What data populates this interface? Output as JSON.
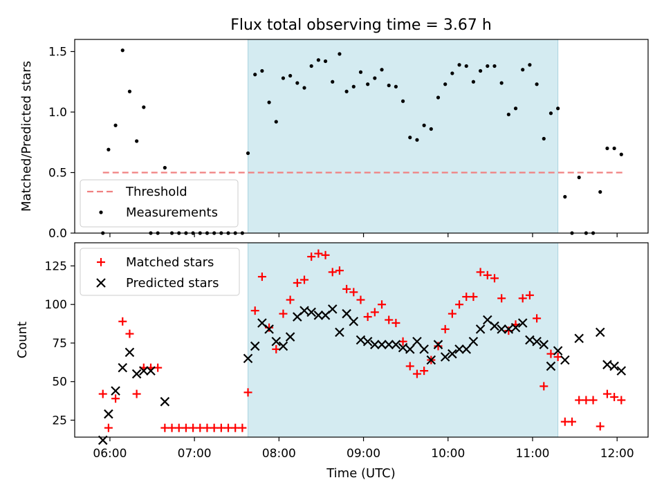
{
  "chart_data": [
    {
      "type": "scatter",
      "title": "Flux total observing time = 3.67 h",
      "ylabel": "Matched/Predicted stars",
      "xlabel": "",
      "xlim": [
        "05:35",
        "12:22"
      ],
      "ylim": [
        0,
        1.6
      ],
      "yticks": [
        0.0,
        0.5,
        1.0,
        1.5
      ],
      "ytick_labels": [
        "0.0",
        "0.5",
        "1.0",
        "1.5"
      ],
      "grid": false,
      "legend_position": "lower-left",
      "shaded_interval": [
        "07:38",
        "11:18"
      ],
      "shade_color": "#d4ebf1",
      "threshold": {
        "name": "Threshold",
        "y": 0.5,
        "x_range": [
          "05:55",
          "12:05"
        ],
        "color": "#f08080"
      },
      "series": [
        {
          "name": "Measurements",
          "color": "#000000",
          "marker": "dot",
          "x": [
            "05:55",
            "05:59",
            "06:04",
            "06:09",
            "06:14",
            "06:19",
            "06:24",
            "06:29",
            "06:34",
            "06:39",
            "06:44",
            "06:49",
            "06:54",
            "06:59",
            "07:04",
            "07:09",
            "07:14",
            "07:19",
            "07:24",
            "07:29",
            "07:34",
            "07:38",
            "07:43",
            "07:48",
            "07:53",
            "07:58",
            "08:03",
            "08:08",
            "08:13",
            "08:18",
            "08:23",
            "08:28",
            "08:33",
            "08:38",
            "08:43",
            "08:48",
            "08:53",
            "08:58",
            "09:03",
            "09:08",
            "09:13",
            "09:18",
            "09:23",
            "09:28",
            "09:33",
            "09:38",
            "09:43",
            "09:48",
            "09:53",
            "09:58",
            "10:03",
            "10:08",
            "10:13",
            "10:18",
            "10:23",
            "10:28",
            "10:33",
            "10:38",
            "10:43",
            "10:48",
            "10:53",
            "10:58",
            "11:03",
            "11:08",
            "11:13",
            "11:18",
            "11:23",
            "11:28",
            "11:33",
            "11:38",
            "11:43",
            "11:48",
            "11:53",
            "11:58",
            "12:03"
          ],
          "y": [
            0,
            0.69,
            0.89,
            1.51,
            1.17,
            0.76,
            1.04,
            0,
            0,
            0.54,
            0,
            0,
            0,
            0,
            0,
            0,
            0,
            0,
            0,
            0,
            0,
            0.66,
            1.31,
            1.34,
            1.08,
            0.92,
            1.28,
            1.3,
            1.24,
            1.2,
            1.38,
            1.43,
            1.42,
            1.25,
            1.48,
            1.17,
            1.21,
            1.33,
            1.23,
            1.28,
            1.35,
            1.22,
            1.21,
            1.09,
            0.79,
            0.77,
            0.89,
            0.86,
            1.12,
            1.23,
            1.32,
            1.39,
            1.38,
            1.25,
            1.34,
            1.38,
            1.38,
            1.24,
            0.98,
            1.03,
            1.35,
            1.39,
            1.23,
            0.78,
            0.99,
            1.03,
            0.3,
            0,
            0.46,
            0,
            0,
            0.34,
            0.7,
            0.7,
            0.65
          ]
        }
      ]
    },
    {
      "type": "scatter",
      "title": "",
      "xlabel": "Time (UTC)",
      "ylabel": "Count",
      "xlim": [
        "05:35",
        "12:22"
      ],
      "ylim": [
        14,
        140
      ],
      "xticks": [
        "06:00",
        "07:00",
        "08:00",
        "09:00",
        "10:00",
        "11:00",
        "12:00"
      ],
      "yticks": [
        25,
        50,
        75,
        100,
        125
      ],
      "ytick_labels": [
        "25",
        "50",
        "75",
        "100",
        "125"
      ],
      "grid": false,
      "legend_position": "top-left",
      "shaded_interval": [
        "07:38",
        "11:18"
      ],
      "shade_color": "#d4ebf1",
      "series": [
        {
          "name": "Matched stars",
          "color": "#ff0000",
          "marker": "plus",
          "x": [
            "05:55",
            "05:59",
            "06:04",
            "06:09",
            "06:14",
            "06:19",
            "06:24",
            "06:29",
            "06:34",
            "06:39",
            "06:44",
            "06:49",
            "06:54",
            "06:59",
            "07:04",
            "07:09",
            "07:14",
            "07:19",
            "07:24",
            "07:29",
            "07:34",
            "07:38",
            "07:43",
            "07:48",
            "07:53",
            "07:58",
            "08:03",
            "08:08",
            "08:13",
            "08:18",
            "08:23",
            "08:28",
            "08:33",
            "08:38",
            "08:43",
            "08:48",
            "08:53",
            "08:58",
            "09:03",
            "09:08",
            "09:13",
            "09:18",
            "09:23",
            "09:28",
            "09:33",
            "09:38",
            "09:43",
            "09:48",
            "09:53",
            "09:58",
            "10:03",
            "10:08",
            "10:13",
            "10:18",
            "10:23",
            "10:28",
            "10:33",
            "10:38",
            "10:43",
            "10:48",
            "10:53",
            "10:58",
            "11:03",
            "11:08",
            "11:13",
            "11:18",
            "11:23",
            "11:28",
            "11:33",
            "11:38",
            "11:43",
            "11:48",
            "11:53",
            "11:58",
            "12:03"
          ],
          "y": [
            42,
            20,
            39,
            89,
            81,
            42,
            59,
            59,
            59,
            20,
            20,
            20,
            20,
            20,
            20,
            20,
            20,
            20,
            20,
            20,
            20,
            43,
            96,
            118,
            85,
            71,
            94,
            103,
            114,
            116,
            131,
            133,
            132,
            121,
            122,
            110,
            108,
            103,
            92,
            95,
            100,
            90,
            88,
            76,
            60,
            55,
            57,
            64,
            73,
            84,
            94,
            100,
            105,
            105,
            121,
            119,
            117,
            104,
            83,
            87,
            104,
            106,
            91,
            47,
            68,
            66,
            24,
            24,
            38,
            38,
            38,
            21,
            42,
            40,
            38
          ]
        },
        {
          "name": "Predicted stars",
          "color": "#000000",
          "marker": "x",
          "x": [
            "05:55",
            "05:59",
            "06:04",
            "06:09",
            "06:14",
            "06:19",
            "06:24",
            "06:29",
            "06:39",
            "07:38",
            "07:43",
            "07:48",
            "07:53",
            "07:58",
            "08:03",
            "08:08",
            "08:13",
            "08:18",
            "08:23",
            "08:28",
            "08:33",
            "08:38",
            "08:43",
            "08:48",
            "08:53",
            "08:58",
            "09:03",
            "09:08",
            "09:13",
            "09:18",
            "09:23",
            "09:28",
            "09:33",
            "09:38",
            "09:43",
            "09:48",
            "09:53",
            "09:58",
            "10:03",
            "10:08",
            "10:13",
            "10:18",
            "10:23",
            "10:28",
            "10:33",
            "10:38",
            "10:43",
            "10:48",
            "10:53",
            "10:58",
            "11:03",
            "11:08",
            "11:13",
            "11:18",
            "11:23",
            "11:33",
            "11:48",
            "11:53",
            "11:58",
            "12:03"
          ],
          "y": [
            12,
            29,
            44,
            59,
            69,
            55,
            57,
            57,
            37,
            65,
            73,
            88,
            84,
            76,
            73,
            79,
            92,
            96,
            95,
            93,
            93,
            97,
            82,
            94,
            89,
            77,
            76,
            74,
            74,
            74,
            74,
            72,
            71,
            76,
            71,
            64,
            74,
            66,
            68,
            71,
            71,
            76,
            84,
            90,
            86,
            84,
            84,
            85,
            88,
            77,
            76,
            74,
            60,
            70,
            64,
            78,
            82,
            61,
            60,
            57
          ]
        }
      ]
    }
  ]
}
